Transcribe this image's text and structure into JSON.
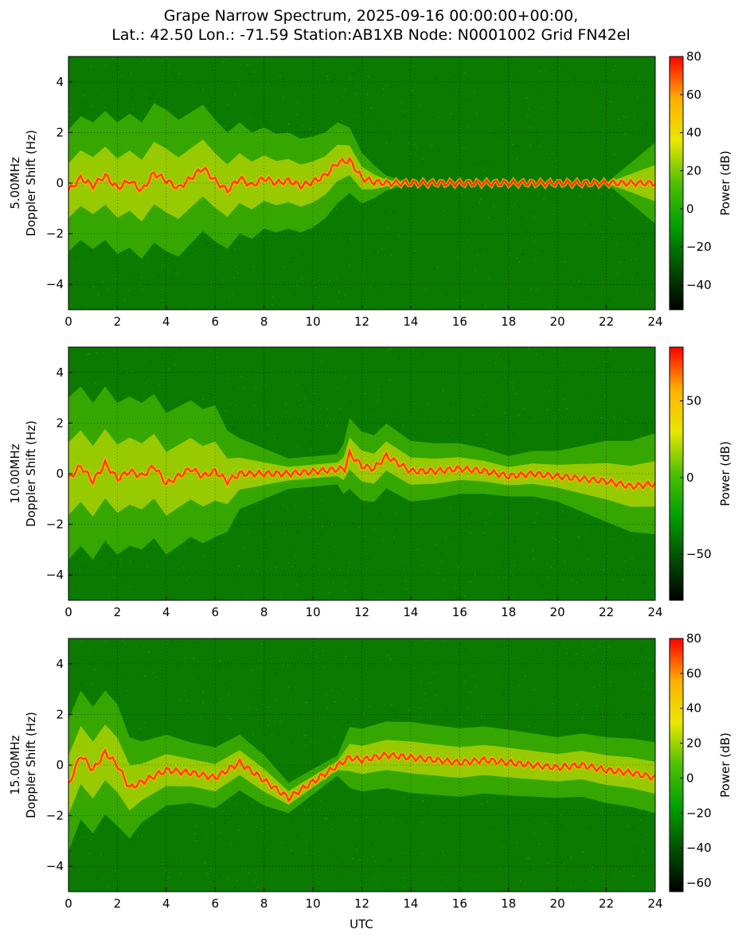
{
  "figure": {
    "title_line1": "Grape Narrow Spectrum, 2025-09-16 00:00:00+00:00,",
    "title_line2": "Lat.: 42.50 Lon.: -71.59 Station:AB1XB Node: N0001002 Grid FN42el",
    "xlabel": "UTC"
  },
  "colors": {
    "background_green": "#0a7a00",
    "signal_yellow": "#e8e800",
    "peak_red": "#ff3000",
    "colormap": [
      "#000000",
      "#005000",
      "#00a000",
      "#4fbf00",
      "#e8e800",
      "#ffb000",
      "#ff0000"
    ]
  },
  "chart_data": [
    {
      "type": "heatmap",
      "ylabel_line1": "5.00MHz",
      "ylabel_line2": "Doppler Shift (Hz)",
      "xlim": [
        0,
        24
      ],
      "ylim": [
        -5,
        5
      ],
      "xticks": [
        "0",
        "2",
        "4",
        "6",
        "8",
        "10",
        "12",
        "14",
        "16",
        "18",
        "20",
        "22",
        "24"
      ],
      "yticks": [
        "4",
        "2",
        "0",
        "−2",
        "−4"
      ],
      "colorbar": {
        "label": "Power (dB)",
        "range": [
          -53,
          80
        ],
        "ticks": [
          "80",
          "60",
          "40",
          "20",
          "0",
          "−20",
          "−40"
        ],
        "tick_values": [
          80,
          60,
          40,
          20,
          0,
          -20,
          -40
        ]
      },
      "grid": true,
      "signal_trace": {
        "x": [
          0,
          0.5,
          1,
          1.5,
          2,
          2.5,
          3,
          3.5,
          4,
          4.5,
          5,
          5.5,
          6,
          6.5,
          7,
          7.5,
          8,
          8.5,
          9,
          9.5,
          10,
          10.5,
          11,
          11.5,
          12,
          12.5,
          13,
          22.5,
          23,
          23.5,
          24
        ],
        "y": [
          -0.3,
          0.2,
          -0.1,
          0.3,
          -0.2,
          0.1,
          -0.3,
          0.4,
          0.1,
          -0.2,
          0.2,
          0.6,
          0.1,
          -0.3,
          0.2,
          -0.1,
          0.2,
          0,
          0.1,
          -0.1,
          0.05,
          0.3,
          0.8,
          0.9,
          0.2,
          0.05,
          0,
          0,
          0,
          0,
          0
        ]
      },
      "spread_envelope": {
        "x": [
          0,
          2,
          4,
          6,
          8,
          10,
          11,
          12,
          13,
          14,
          22,
          23,
          24
        ],
        "halfwidth": [
          2.4,
          2.6,
          2.8,
          2.4,
          2.0,
          1.8,
          1.6,
          1.0,
          0.3,
          0,
          0,
          0.8,
          1.6
        ]
      }
    },
    {
      "type": "heatmap",
      "ylabel_line1": "10.00MHz",
      "ylabel_line2": "Doppler Shift (Hz)",
      "xlim": [
        0,
        24
      ],
      "ylim": [
        -5,
        5
      ],
      "xticks": [
        "0",
        "2",
        "4",
        "6",
        "8",
        "10",
        "12",
        "14",
        "16",
        "18",
        "20",
        "22",
        "24"
      ],
      "yticks": [
        "4",
        "2",
        "0",
        "−2",
        "−4"
      ],
      "colorbar": {
        "label": "Power (dB)",
        "range": [
          -80,
          85
        ],
        "ticks": [
          "50",
          "0",
          "−50"
        ],
        "tick_values": [
          50,
          0,
          -50
        ]
      },
      "grid": true,
      "signal_trace": {
        "x": [
          0,
          0.5,
          1,
          1.5,
          2,
          2.5,
          3,
          3.5,
          4,
          4.5,
          5,
          5.5,
          6,
          6.5,
          7,
          9,
          11.3,
          11.5,
          12,
          12.5,
          13,
          13.5,
          14,
          15,
          16,
          17,
          18,
          19,
          20,
          21,
          22,
          23,
          24
        ],
        "y": [
          -0.2,
          0.3,
          -0.3,
          0.4,
          -0.2,
          0.1,
          -0.1,
          0.3,
          -0.4,
          -0.1,
          0.2,
          -0.1,
          0.1,
          -0.3,
          0,
          0,
          0.2,
          0.8,
          0.3,
          0.2,
          0.7,
          0.4,
          0.1,
          0.1,
          0.2,
          0.1,
          -0.1,
          0,
          -0.1,
          -0.2,
          -0.3,
          -0.5,
          -0.4
        ]
      },
      "spread_envelope": {
        "x": [
          0,
          2,
          4,
          6,
          7,
          9,
          11,
          11.5,
          14,
          18,
          20,
          22,
          24
        ],
        "halfwidth": [
          3.2,
          3.0,
          2.8,
          2.6,
          1.4,
          0.6,
          0.6,
          1.4,
          1.2,
          0.8,
          1.0,
          1.6,
          2.0
        ]
      }
    },
    {
      "type": "heatmap",
      "ylabel_line1": "15.00MHz",
      "ylabel_line2": "Doppler Shift (Hz)",
      "xlim": [
        0,
        24
      ],
      "ylim": [
        -5,
        5
      ],
      "xticks": [
        "0",
        "2",
        "4",
        "6",
        "8",
        "10",
        "12",
        "14",
        "16",
        "18",
        "20",
        "22",
        "24"
      ],
      "yticks": [
        "4",
        "2",
        "0",
        "−2",
        "−4"
      ],
      "colorbar": {
        "label": "Power (dB)",
        "range": [
          -65,
          80
        ],
        "ticks": [
          "80",
          "60",
          "40",
          "20",
          "0",
          "−20",
          "−40",
          "−60"
        ],
        "tick_values": [
          80,
          60,
          40,
          20,
          0,
          -20,
          -40,
          -60
        ]
      },
      "grid": true,
      "signal_trace": {
        "x": [
          0,
          0.5,
          1,
          1.5,
          2,
          2.5,
          4,
          5,
          6,
          7,
          8,
          9,
          11.5,
          12,
          13,
          14,
          15,
          16,
          17,
          18,
          19,
          20,
          21,
          22,
          23,
          24
        ],
        "y": [
          -0.8,
          0.4,
          -0.2,
          0.5,
          0,
          -0.9,
          -0.2,
          -0.3,
          -0.5,
          0.1,
          -0.6,
          -1.3,
          0.3,
          0.2,
          0.4,
          0.3,
          0.2,
          0.1,
          0.2,
          0.1,
          0,
          -0.1,
          0,
          -0.2,
          -0.3,
          -0.5
        ]
      },
      "spread_envelope": {
        "x": [
          0,
          2,
          3,
          4,
          5,
          6,
          8,
          9,
          11,
          11.5,
          14,
          18,
          20,
          22,
          24
        ],
        "halfwidth": [
          2.6,
          2.4,
          1.6,
          1.4,
          1.2,
          1.2,
          1.0,
          0.6,
          0.4,
          1.2,
          1.4,
          1.3,
          1.2,
          1.3,
          1.4
        ]
      }
    }
  ]
}
